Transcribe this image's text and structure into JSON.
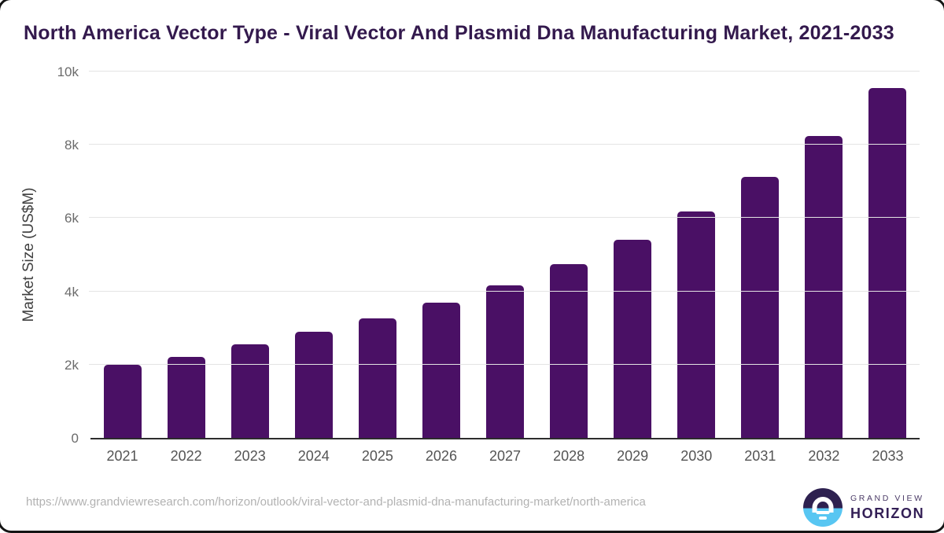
{
  "header": {
    "title": "North America Vector Type - Viral Vector And Plasmid Dna Manufacturing Market, 2021-2033"
  },
  "chart_data": {
    "type": "bar",
    "title": "North America Vector Type - Viral Vector And Plasmid Dna Manufacturing Market, 2021-2033",
    "categories": [
      "2021",
      "2022",
      "2023",
      "2024",
      "2025",
      "2026",
      "2027",
      "2028",
      "2029",
      "2030",
      "2031",
      "2032",
      "2033"
    ],
    "values": [
      2000,
      2200,
      2560,
      2900,
      3270,
      3700,
      4170,
      4740,
      5400,
      6190,
      7120,
      8230,
      9540
    ],
    "xlabel": "",
    "ylabel": "Market Size (US$M)",
    "ylim": [
      0,
      10000
    ],
    "yticks": [
      {
        "value": 0,
        "label": "0"
      },
      {
        "value": 2000,
        "label": "2k"
      },
      {
        "value": 4000,
        "label": "4k"
      },
      {
        "value": 6000,
        "label": "6k"
      },
      {
        "value": 8000,
        "label": "8k"
      },
      {
        "value": 10000,
        "label": "10k"
      }
    ],
    "grid": true,
    "legend": false
  },
  "footer": {
    "source_url": "https://www.grandviewresearch.com/horizon/outlook/viral-vector-and-plasmid-dna-manufacturing-market/north-america",
    "logo": {
      "line1": "GRAND VIEW",
      "line2": "HORIZON",
      "icon": "sunrise-circle-icon"
    }
  },
  "colors": {
    "bar": "#4a1065",
    "title": "#33194d",
    "logo_purple": "#2e2150",
    "logo_purple_dark": "#331f56",
    "logo_blue": "#58c6f2"
  }
}
